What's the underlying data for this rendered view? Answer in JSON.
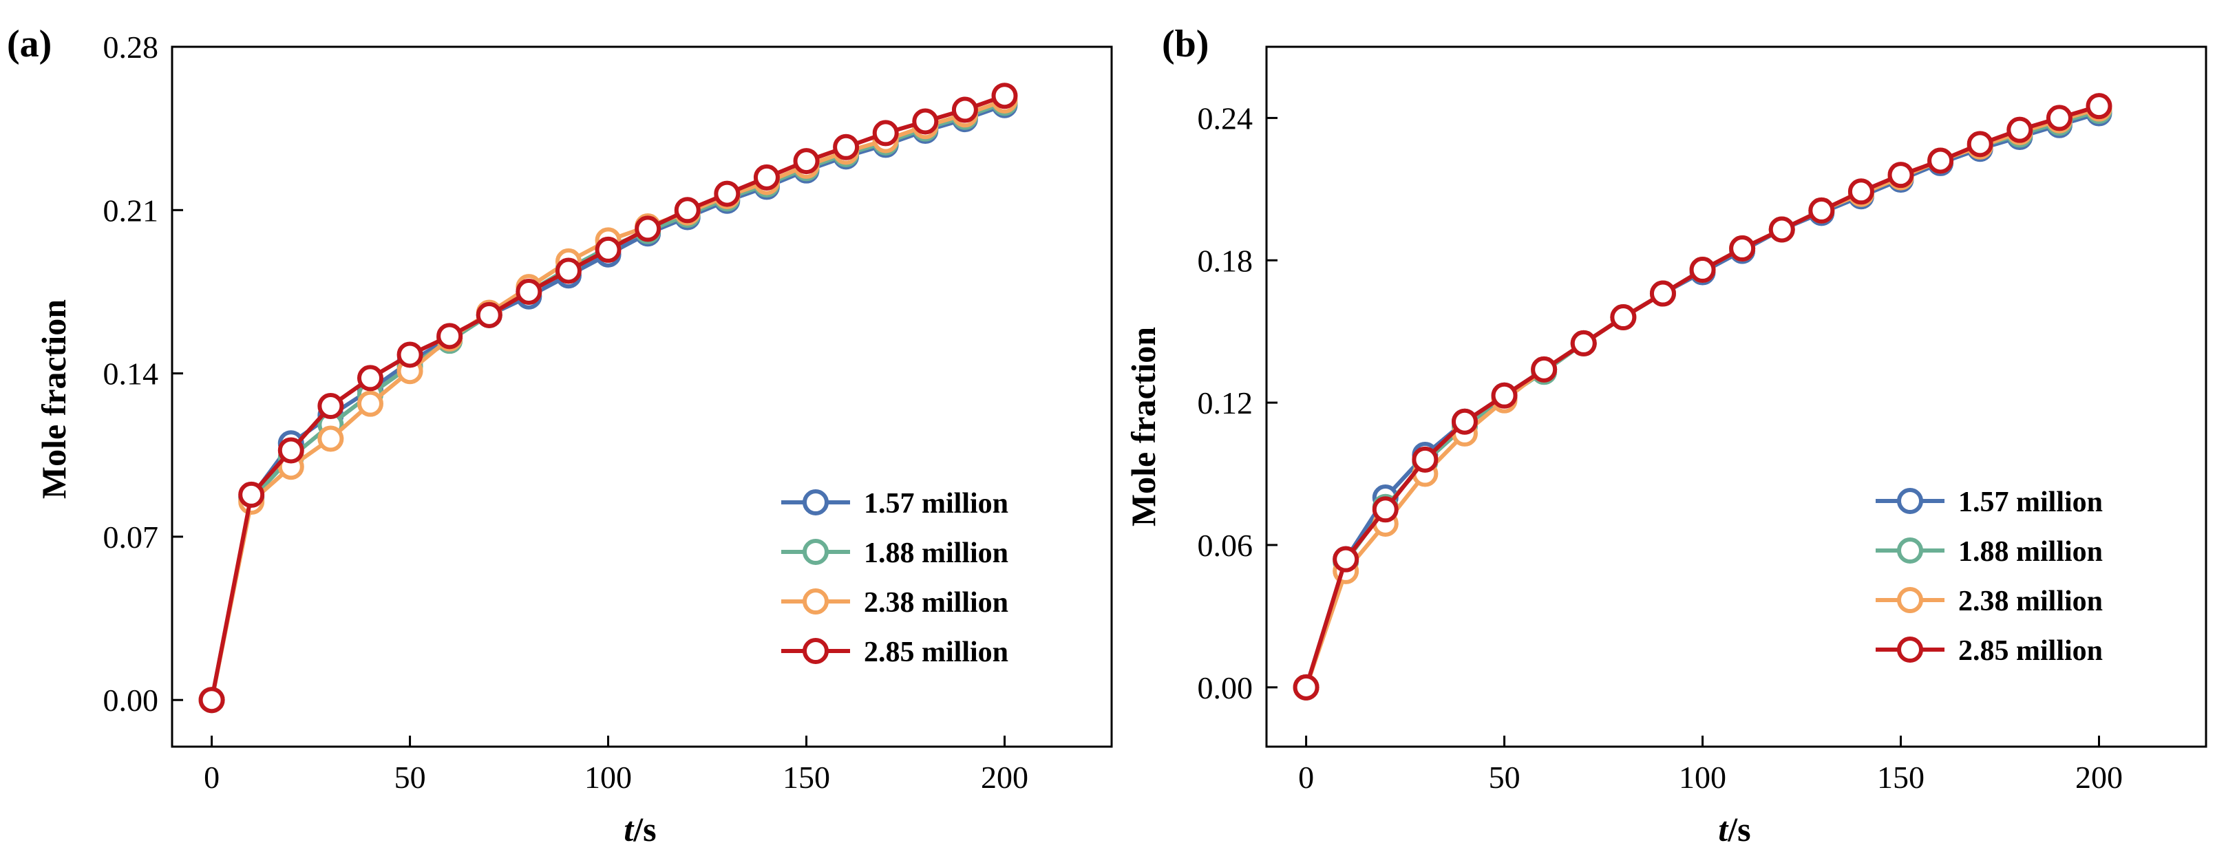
{
  "chart_data": [
    {
      "type": "line",
      "panel_label": "(a)",
      "xlabel_italic": "t",
      "xlabel_rest": "/s",
      "ylabel": "Mole fraction",
      "xlim": [
        -10,
        227
      ],
      "ylim": [
        -0.02,
        0.28
      ],
      "xticks": [
        0,
        50,
        100,
        150,
        200
      ],
      "xtick_labels": [
        "0",
        "50",
        "100",
        "150",
        "200"
      ],
      "yticks": [
        0.0,
        0.07,
        0.14,
        0.21,
        0.28
      ],
      "ytick_labels": [
        "0.00",
        "0.07",
        "0.14",
        "0.21",
        "0.28"
      ],
      "legend_position": "bottom-right",
      "x": [
        0,
        10,
        20,
        30,
        40,
        50,
        60,
        70,
        80,
        90,
        100,
        110,
        120,
        130,
        140,
        150,
        160,
        170,
        180,
        190,
        200
      ],
      "series": [
        {
          "name": "1.57 million",
          "color": "#4a72b0",
          "values": [
            0.0,
            0.087,
            0.11,
            0.122,
            0.133,
            0.145,
            0.155,
            0.165,
            0.173,
            0.182,
            0.191,
            0.2,
            0.207,
            0.214,
            0.22,
            0.227,
            0.233,
            0.238,
            0.244,
            0.249,
            0.255
          ]
        },
        {
          "name": "1.88 million",
          "color": "#6aaf94",
          "values": [
            0.0,
            0.086,
            0.104,
            0.118,
            0.131,
            0.143,
            0.154,
            0.165,
            0.175,
            0.185,
            0.194,
            0.201,
            0.208,
            0.215,
            0.221,
            0.228,
            0.234,
            0.239,
            0.245,
            0.25,
            0.256
          ]
        },
        {
          "name": "2.38 million",
          "color": "#f4a45d",
          "values": [
            0.0,
            0.085,
            0.1,
            0.112,
            0.127,
            0.141,
            0.155,
            0.166,
            0.177,
            0.188,
            0.197,
            0.203,
            0.209,
            0.216,
            0.222,
            0.229,
            0.235,
            0.24,
            0.246,
            0.251,
            0.257
          ]
        },
        {
          "name": "2.85 million",
          "color": "#c0161c",
          "values": [
            0.0,
            0.088,
            0.107,
            0.126,
            0.138,
            0.148,
            0.156,
            0.165,
            0.175,
            0.184,
            0.193,
            0.202,
            0.21,
            0.217,
            0.224,
            0.231,
            0.237,
            0.243,
            0.248,
            0.253,
            0.259
          ]
        }
      ]
    },
    {
      "type": "line",
      "panel_label": "(b)",
      "xlabel_italic": "t",
      "xlabel_rest": "/s",
      "ylabel": "Mole fraction",
      "xlim": [
        -10,
        227
      ],
      "ylim": [
        -0.025,
        0.27
      ],
      "xticks": [
        0,
        50,
        100,
        150,
        200
      ],
      "xtick_labels": [
        "0",
        "50",
        "100",
        "150",
        "200"
      ],
      "yticks": [
        0.0,
        0.06,
        0.12,
        0.18,
        0.24
      ],
      "ytick_labels": [
        "0.00",
        "0.06",
        "0.12",
        "0.18",
        "0.24"
      ],
      "legend_position": "bottom-right",
      "x": [
        0,
        10,
        20,
        30,
        40,
        50,
        60,
        70,
        80,
        90,
        100,
        110,
        120,
        130,
        140,
        150,
        160,
        170,
        180,
        190,
        200
      ],
      "series": [
        {
          "name": "1.57 million",
          "color": "#4a72b0",
          "values": [
            0.0,
            0.054,
            0.08,
            0.098,
            0.112,
            0.123,
            0.134,
            0.145,
            0.156,
            0.166,
            0.175,
            0.184,
            0.193,
            0.2,
            0.207,
            0.214,
            0.221,
            0.227,
            0.232,
            0.237,
            0.242
          ]
        },
        {
          "name": "1.88 million",
          "color": "#6aaf94",
          "values": [
            0.0,
            0.053,
            0.076,
            0.095,
            0.11,
            0.122,
            0.133,
            0.145,
            0.156,
            0.166,
            0.176,
            0.185,
            0.193,
            0.201,
            0.208,
            0.215,
            0.222,
            0.228,
            0.233,
            0.238,
            0.243
          ]
        },
        {
          "name": "2.38 million",
          "color": "#f4a45d",
          "values": [
            0.0,
            0.049,
            0.069,
            0.09,
            0.107,
            0.121,
            0.134,
            0.145,
            0.156,
            0.166,
            0.176,
            0.185,
            0.193,
            0.201,
            0.208,
            0.215,
            0.222,
            0.228,
            0.234,
            0.239,
            0.244
          ]
        },
        {
          "name": "2.85 million",
          "color": "#c0161c",
          "values": [
            0.0,
            0.054,
            0.075,
            0.096,
            0.112,
            0.123,
            0.134,
            0.145,
            0.156,
            0.166,
            0.176,
            0.185,
            0.193,
            0.201,
            0.209,
            0.216,
            0.222,
            0.229,
            0.235,
            0.24,
            0.245
          ]
        }
      ]
    }
  ]
}
